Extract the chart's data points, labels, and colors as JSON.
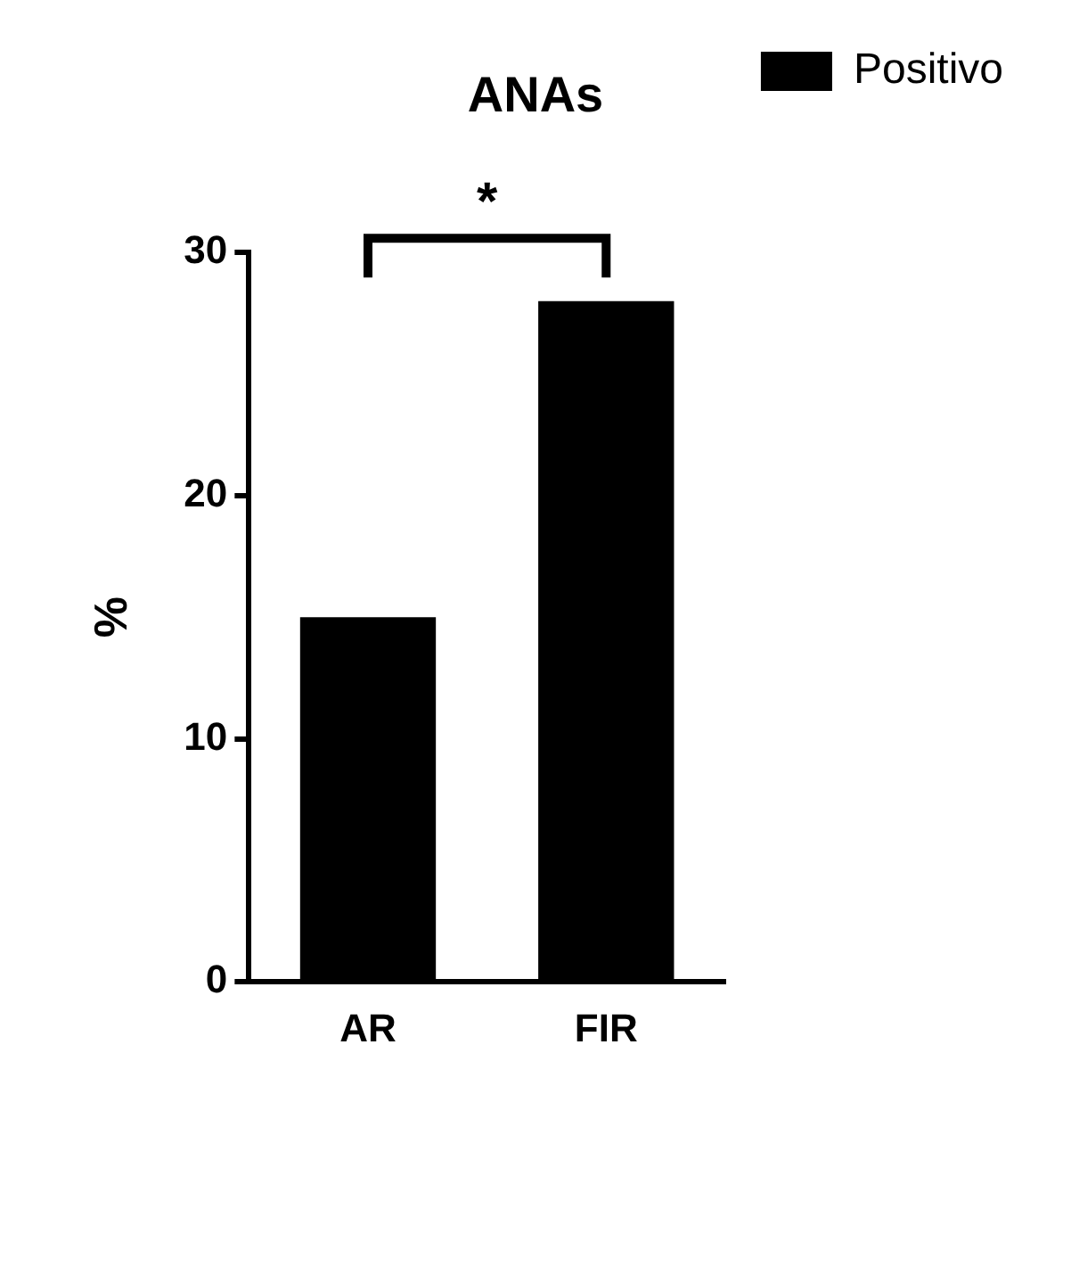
{
  "chart_data": {
    "type": "bar",
    "title": "ANAs",
    "ylabel": "%",
    "categories": [
      "AR",
      "FIR"
    ],
    "series": [
      {
        "name": "Positivo",
        "color": "#000000",
        "values": [
          15,
          28
        ]
      }
    ],
    "ylim": [
      0,
      30
    ],
    "yticks": [
      0,
      10,
      20,
      30
    ],
    "grid": false,
    "legend": "top right",
    "annotations": [
      "*"
    ]
  }
}
